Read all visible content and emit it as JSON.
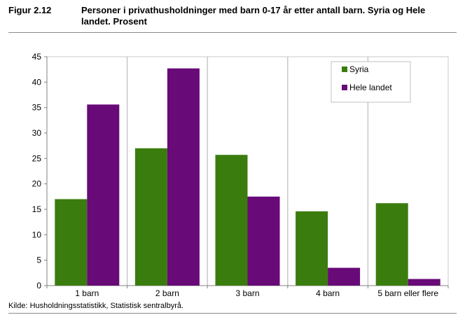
{
  "figure": {
    "number": "Figur 2.12",
    "title": "Personer i privathusholdninger med barn 0-17 år etter antall barn. Syria og Hele landet. Prosent",
    "source": "Kilde: Husholdningsstatistikk, Statistisk sentralbyrå."
  },
  "colors": {
    "syria": "#3a7d0e",
    "hele_landet": "#680a78",
    "grid": "#c8c8c8",
    "axis": "#808080"
  },
  "chart_data": {
    "type": "bar",
    "categories": [
      "1 barn",
      "2 barn",
      "3 barn",
      "4 barn",
      "5 barn eller flere"
    ],
    "series": [
      {
        "name": "Syria",
        "values": [
          17.0,
          27.0,
          25.7,
          14.6,
          16.2
        ]
      },
      {
        "name": "Hele landet",
        "values": [
          35.6,
          42.7,
          17.5,
          3.5,
          1.3
        ]
      }
    ],
    "ylim": [
      0,
      45
    ],
    "yticks": [
      0,
      5,
      10,
      15,
      20,
      25,
      30,
      35,
      40,
      45
    ],
    "grid": "vertical category separators",
    "legend_position": "top-right",
    "xlabel": "",
    "ylabel": ""
  }
}
